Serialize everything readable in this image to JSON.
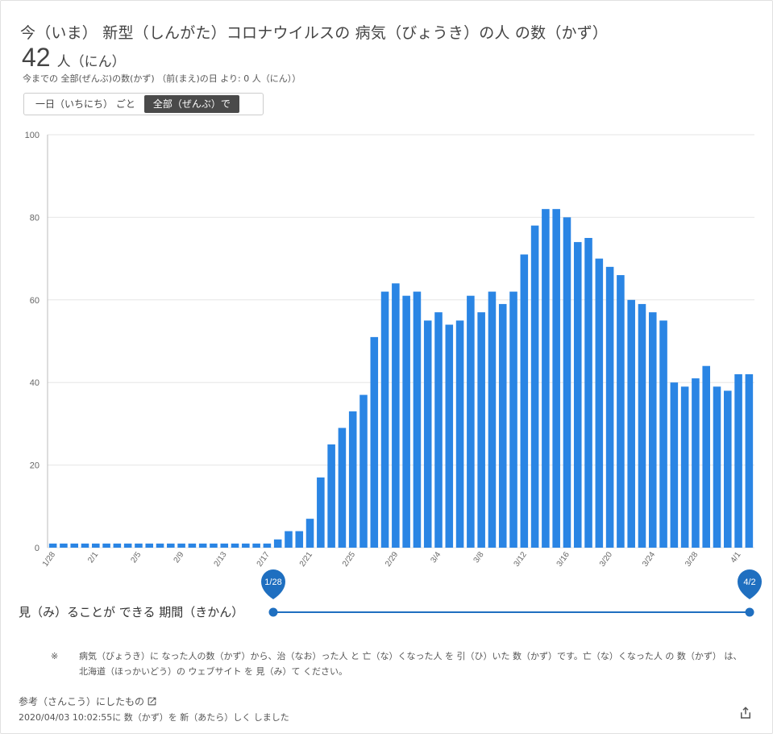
{
  "header": {
    "title": "今（いま） 新型（しんがた）コロナウイルスの 病気（びょうき）の人 の数（かず）",
    "count": "42",
    "count_unit": "人（にん）",
    "subtitle": "今までの 全部(ぜんぶ)の数(かず) （前(まえ)の日 より: 0 人（にん））"
  },
  "toggle": {
    "daily_label": "一日（いちにち） ごと",
    "total_label": "全部（ぜんぶ）で",
    "selected": "total"
  },
  "colors": {
    "bar": "#2a85e4",
    "slider": "#1f6fc0",
    "grid": "#e6e6e6"
  },
  "chart_data": {
    "type": "bar",
    "ylim": [
      0,
      100
    ],
    "yticks": [
      "0",
      "20",
      "40",
      "60",
      "80",
      "100"
    ],
    "xtick_labels": [
      "1/28",
      "2/1",
      "2/5",
      "2/9",
      "2/13",
      "2/17",
      "2/21",
      "2/25",
      "2/29",
      "3/4",
      "3/8",
      "3/12",
      "3/16",
      "3/20",
      "3/24",
      "3/28",
      "4/1"
    ],
    "categories": [
      "1/28",
      "1/29",
      "1/30",
      "1/31",
      "2/1",
      "2/2",
      "2/3",
      "2/4",
      "2/5",
      "2/6",
      "2/7",
      "2/8",
      "2/9",
      "2/10",
      "2/11",
      "2/12",
      "2/13",
      "2/14",
      "2/15",
      "2/16",
      "2/17",
      "2/18",
      "2/19",
      "2/20",
      "2/21",
      "2/22",
      "2/23",
      "2/24",
      "2/25",
      "2/26",
      "2/27",
      "2/28",
      "2/29",
      "3/1",
      "3/2",
      "3/3",
      "3/4",
      "3/5",
      "3/6",
      "3/7",
      "3/8",
      "3/9",
      "3/10",
      "3/11",
      "3/12",
      "3/13",
      "3/14",
      "3/15",
      "3/16",
      "3/17",
      "3/18",
      "3/19",
      "3/20",
      "3/21",
      "3/22",
      "3/23",
      "3/24",
      "3/25",
      "3/26",
      "3/27",
      "3/28",
      "3/29",
      "3/30",
      "3/31",
      "4/1",
      "4/2"
    ],
    "values": [
      1,
      1,
      1,
      1,
      1,
      1,
      1,
      1,
      1,
      1,
      1,
      1,
      1,
      1,
      1,
      1,
      1,
      1,
      1,
      1,
      1,
      2,
      4,
      4,
      7,
      17,
      25,
      29,
      33,
      37,
      51,
      62,
      64,
      61,
      62,
      55,
      57,
      54,
      55,
      61,
      57,
      62,
      59,
      62,
      71,
      78,
      82,
      82,
      80,
      74,
      75,
      70,
      68,
      66,
      60,
      59,
      57,
      55,
      40,
      39,
      41,
      44,
      39,
      38,
      42,
      42
    ]
  },
  "range": {
    "label": "見（み）ることが できる 期間（きかん）",
    "start": "1/28",
    "end": "4/2"
  },
  "footer": {
    "note_mark": "※",
    "note": "病気（びょうき）に なった人の数（かず）から、治（なお）った人 と 亡（な）くなった人 を 引（ひ）いた 数（かず）です。亡（な）くなった人 の 数（かず） は、北海道（ほっかいどう）の ウェブサイト を 見（み）て ください。",
    "reference": "参考（さんこう）にしたもの",
    "updated": "2020/04/03 10:02:55に 数（かず）を 新（あたら）しく しました"
  }
}
